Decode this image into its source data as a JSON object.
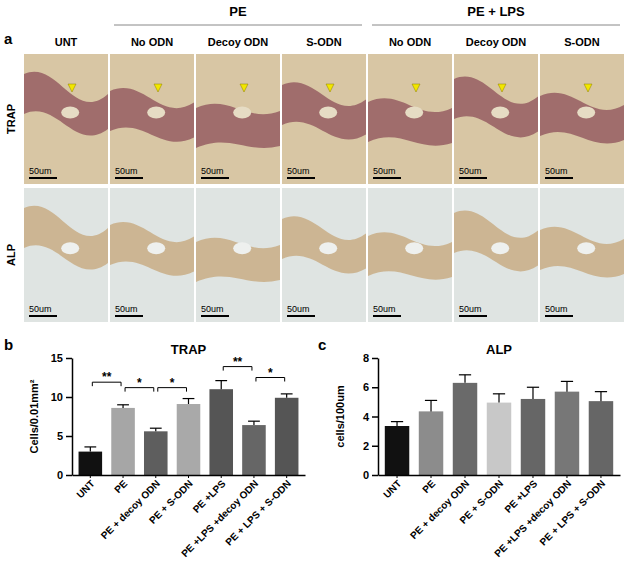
{
  "panel_a": {
    "label": "a",
    "group_labels": [
      "PE",
      "PE + LPS"
    ],
    "column_labels": [
      "UNT",
      "No ODN",
      "Decoy ODN",
      "S-ODN",
      "No ODN",
      "Decoy ODN",
      "S-ODN"
    ],
    "row_labels": [
      "TRAP",
      "ALP"
    ],
    "scale_bar_label": "50um"
  },
  "chart_data": [
    {
      "panel_label": "b",
      "type": "bar",
      "title": "TRAP",
      "y_label": "Cells/0.01mm²",
      "categories": [
        "UNT",
        "PE",
        "PE + decoy ODN",
        "PE + S-ODN",
        "PE +LPS",
        "PE +LPS +decoy ODN",
        "PE + LPS + S-ODN"
      ],
      "values": [
        3.0,
        8.6,
        5.6,
        9.1,
        11.0,
        6.4,
        9.9
      ],
      "errors": [
        0.6,
        0.4,
        0.4,
        0.7,
        1.1,
        0.5,
        0.5
      ],
      "colors": [
        "#111111",
        "#a6a6a6",
        "#5e5e5e",
        "#a9a9a9",
        "#555555",
        "#666666",
        "#555555"
      ],
      "ylim": [
        0,
        15
      ],
      "yticks": [
        0,
        5,
        10,
        15
      ],
      "significance": [
        {
          "from": 0,
          "to": 1,
          "label": "**",
          "y": 11.9
        },
        {
          "from": 1,
          "to": 2,
          "label": "*",
          "y": 11.2
        },
        {
          "from": 2,
          "to": 3,
          "label": "*",
          "y": 11.2
        },
        {
          "from": 4,
          "to": 5,
          "label": "**",
          "y": 13.9
        },
        {
          "from": 5,
          "to": 6,
          "label": "*",
          "y": 12.5
        }
      ]
    },
    {
      "panel_label": "c",
      "type": "bar",
      "title": "ALP",
      "y_label": "cells/100um",
      "categories": [
        "UNT",
        "PE",
        "PE + decoy ODN",
        "PE + S-ODN",
        "PE +LPS",
        "PE +LPS +decoy ODN",
        "PE + LPS + S-ODN"
      ],
      "values": [
        3.35,
        4.35,
        6.3,
        4.95,
        5.2,
        5.7,
        5.05
      ],
      "errors": [
        0.3,
        0.75,
        0.55,
        0.6,
        0.8,
        0.7,
        0.65
      ],
      "colors": [
        "#111111",
        "#8c8c8c",
        "#6a6a6a",
        "#c8c8c8",
        "#666666",
        "#777777",
        "#666666"
      ],
      "ylim": [
        0,
        8
      ],
      "yticks": [
        0,
        2,
        4,
        6,
        8
      ]
    }
  ]
}
